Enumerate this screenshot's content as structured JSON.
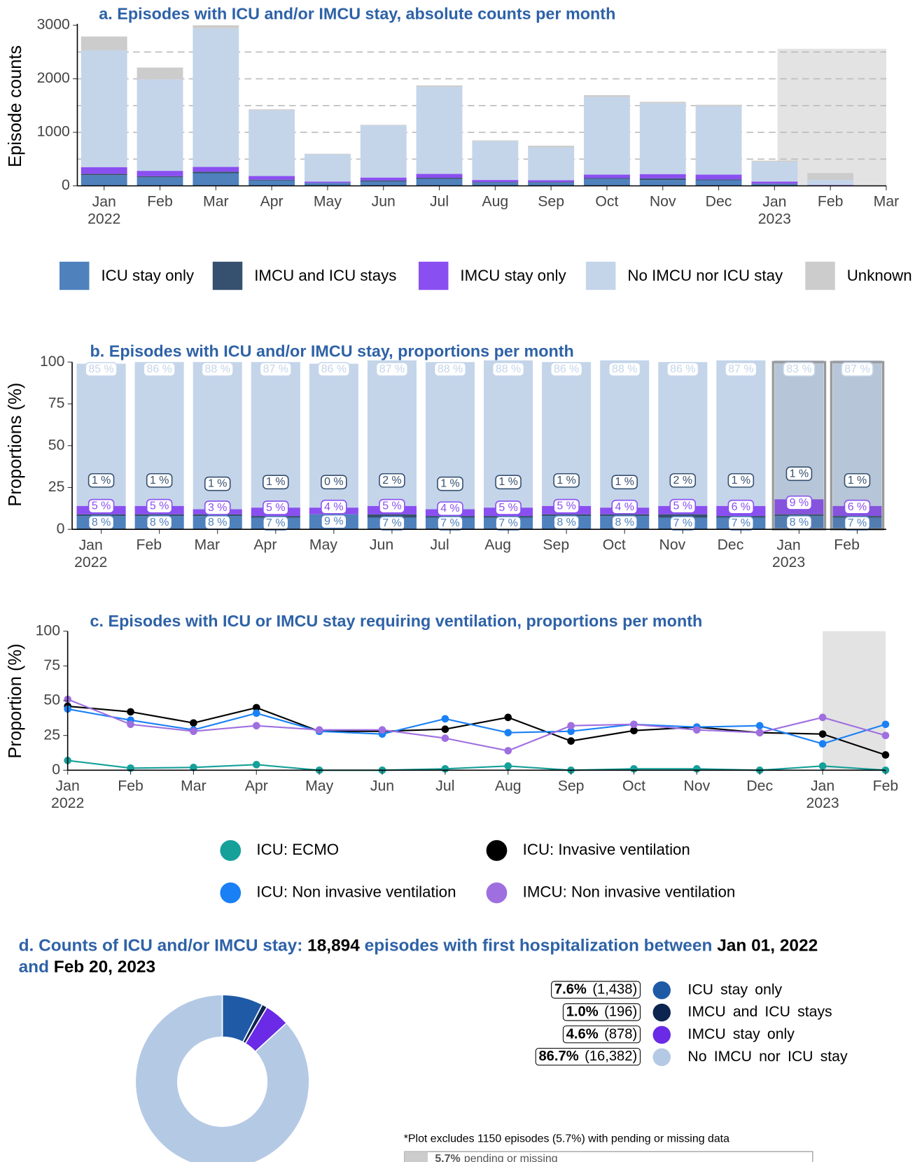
{
  "chart_data": [
    {
      "type": "bar",
      "stacked": true,
      "title": "a. Episodes with ICU and/or IMCU stay, absolute counts per month",
      "y_label": "Episode counts",
      "categories": [
        "Jan\n2022",
        "Feb",
        "Mar",
        "Apr",
        "May",
        "Jun",
        "Jul",
        "Aug",
        "Sep",
        "Oct",
        "Nov",
        "Dec",
        "Jan\n2023",
        "Feb",
        "Mar"
      ],
      "ylim": [
        0,
        3000
      ],
      "yticks": [
        0,
        1000,
        2000,
        3000
      ],
      "grid_lines": [
        500,
        1000,
        1500,
        2000,
        2500
      ],
      "grid_style": "dashed",
      "shaded_range": {
        "from": 12,
        "to": 14,
        "top": 2560
      },
      "legend": "bottom",
      "series": [
        {
          "name": "ICU stay only",
          "color": "#4f81bd",
          "values": [
            200,
            160,
            235,
            100,
            53,
            80,
            130,
            60,
            60,
            130,
            110,
            105,
            36,
            8,
            null
          ]
        },
        {
          "name": "IMCU and ICU stays",
          "color": "#36506f",
          "values": [
            25,
            20,
            30,
            15,
            2,
            20,
            20,
            10,
            10,
            15,
            30,
            15,
            5,
            1,
            null
          ]
        },
        {
          "name": "IMCU stay only",
          "color": "#8a4ff0",
          "values": [
            125,
            100,
            90,
            70,
            24,
            55,
            75,
            40,
            35,
            65,
            80,
            90,
            40,
            7,
            null
          ]
        },
        {
          "name": "No IMCU nor ICU stay",
          "color": "#c4d5ea",
          "values": [
            2180,
            1710,
            2585,
            1225,
            511,
            975,
            1625,
            730,
            615,
            1450,
            1325,
            1280,
            369,
            94,
            null
          ]
        },
        {
          "name": "Unknown",
          "color": "#cccccc",
          "values": [
            260,
            220,
            60,
            20,
            10,
            10,
            25,
            10,
            30,
            35,
            25,
            25,
            20,
            130,
            null
          ]
        }
      ]
    },
    {
      "type": "bar",
      "stacked": true,
      "title": "b. Episodes with ICU and/or IMCU stay, proportions per month",
      "y_label": "Proportions (%)",
      "categories": [
        "Jan\n2022",
        "Feb",
        "Mar",
        "Apr",
        "May",
        "Jun",
        "Jul",
        "Aug",
        "Sep",
        "Oct",
        "Nov",
        "Dec",
        "Jan\n2023",
        "Feb"
      ],
      "ylim": [
        0,
        100
      ],
      "yticks": [
        0,
        25,
        50,
        75,
        100
      ],
      "shaded_range": {
        "from": 12,
        "to": 13
      },
      "series": [
        {
          "name": "ICU stay only",
          "color": "#4f81bd",
          "values": [
            8,
            8,
            8,
            7,
            9,
            7,
            7,
            7,
            8,
            8,
            7,
            7,
            8,
            7
          ],
          "value_labels": [
            "8 %",
            "8 %",
            "8 %",
            "7 %",
            "9 %",
            "7 %",
            "7 %",
            "7 %",
            "8 %",
            "8 %",
            "7 %",
            "7 %",
            "8 %",
            "7 %"
          ]
        },
        {
          "name": "IMCU and ICU stays",
          "color": "#36506f",
          "values": [
            1,
            1,
            1,
            1,
            0,
            2,
            1,
            1,
            1,
            1,
            2,
            1,
            1,
            1
          ],
          "value_labels": [
            "1 %",
            "1 %",
            "1 %",
            "1 %",
            "0 %",
            "2 %",
            "1 %",
            "1 %",
            "1 %",
            "1 %",
            "2 %",
            "1 %",
            "1 %",
            "1 %"
          ]
        },
        {
          "name": "IMCU stay only",
          "color": "#8a4ff0",
          "values": [
            5,
            5,
            3,
            5,
            4,
            5,
            4,
            5,
            5,
            4,
            5,
            6,
            9,
            6
          ],
          "value_labels": [
            "5 %",
            "5 %",
            "3 %",
            "5 %",
            "4 %",
            "5 %",
            "4 %",
            "5 %",
            "5 %",
            "4 %",
            "5 %",
            "6 %",
            "9 %",
            "6 %"
          ]
        },
        {
          "name": "No IMCU nor ICU stay",
          "color": "#c4d5ea",
          "values": [
            85,
            86,
            88,
            87,
            86,
            87,
            88,
            88,
            86,
            88,
            86,
            87,
            83,
            87
          ],
          "value_labels": [
            "85 %",
            "86 %",
            "88 %",
            "87 %",
            "86 %",
            "87 %",
            "88 %",
            "88 %",
            "86 %",
            "88 %",
            "86 %",
            "87 %",
            "83 %",
            "87 %"
          ]
        }
      ]
    },
    {
      "type": "line",
      "title": "c. Episodes with ICU or IMCU stay requiring ventilation, proportions per month",
      "y_label": "Proportion (%)",
      "categories": [
        "Jan\n2022",
        "Feb",
        "Mar",
        "Apr",
        "May",
        "Jun",
        "Jul",
        "Aug",
        "Sep",
        "Oct",
        "Nov",
        "Dec",
        "Jan\n2023",
        "Feb"
      ],
      "ylim": [
        0,
        100
      ],
      "yticks": [
        0,
        25,
        50,
        75,
        100
      ],
      "shaded_range": {
        "from": 12,
        "to": 13
      },
      "legend": "bottom",
      "series": [
        {
          "name": "ICU: ECMO",
          "color": "#15a09a",
          "values": [
            7,
            1.5,
            2,
            4,
            0,
            0,
            1,
            3,
            0,
            1,
            1,
            0,
            3,
            0
          ]
        },
        {
          "name": "ICU: Invasive ventilation",
          "color": "#000000",
          "values": [
            46,
            42,
            34,
            45,
            28,
            28,
            29.5,
            38,
            21,
            28.5,
            31,
            27,
            26,
            11
          ]
        },
        {
          "name": "ICU: Non invasive ventilation",
          "color": "#1a80f5",
          "values": [
            44,
            36,
            29,
            41,
            28,
            26,
            37,
            27,
            28,
            33,
            31,
            32,
            19,
            33
          ]
        },
        {
          "name": "IMCU: Non invasive ventilation",
          "color": "#9f6fe0",
          "values": [
            51,
            33,
            28,
            32,
            29,
            29,
            23,
            14,
            32,
            33,
            29,
            27,
            38,
            25
          ]
        }
      ]
    },
    {
      "type": "pie",
      "donut": true,
      "title_parts": [
        "d. Counts of ICU and/or IMCU stay:",
        "18,894",
        "episodes with first hospitalization between",
        "Jan 01, 2022",
        "and",
        "Feb 20, 2023"
      ],
      "categories": [
        "ICU stay only",
        "IMCU and ICU stays",
        "IMCU stay only",
        "No IMCU nor ICU stay"
      ],
      "values": [
        7.6,
        1.0,
        4.6,
        86.7
      ],
      "value_labels": [
        "7.6%",
        "1.0%",
        "4.6%",
        "86.7%"
      ],
      "counts": [
        1438,
        196,
        878,
        16382
      ],
      "count_labels": [
        "(1,438)",
        "(196)",
        "(878)",
        "(16,382)"
      ],
      "colors": [
        "#1f5aa6",
        "#0c2550",
        "#6a2ae6",
        "#b4c9e4"
      ],
      "note": "*Plot excludes 1150 episodes (5.7%) with pending or missing data",
      "missing": {
        "value": 5.7,
        "label": "5.7%",
        "text": "pending or missing"
      }
    }
  ]
}
